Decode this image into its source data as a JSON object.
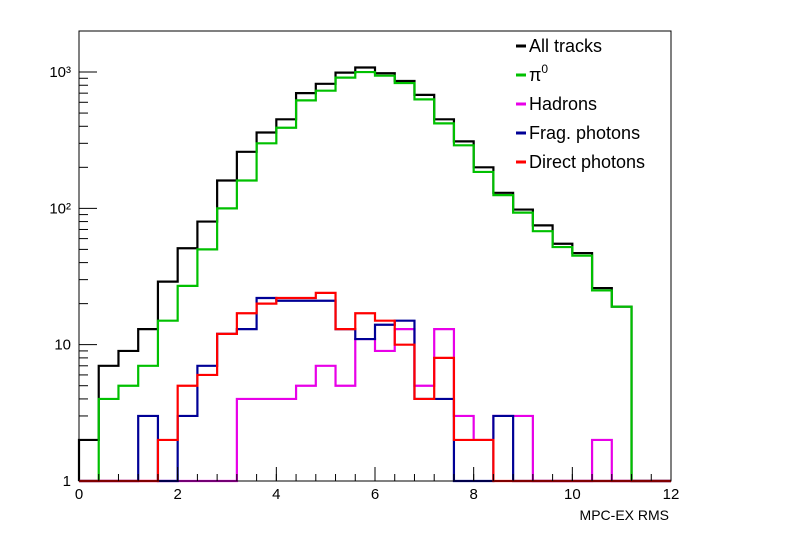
{
  "chart_data": {
    "type": "histogram",
    "xlabel": "MPC-EX RMS",
    "ylabel": "",
    "xlim": [
      0,
      12
    ],
    "ylim": [
      1,
      2000
    ],
    "y_scale": "log",
    "grid": false,
    "legend_position": "top-right",
    "bin_edges": [
      0,
      0.4,
      0.8,
      1.2,
      1.6,
      2.0,
      2.4,
      2.8,
      3.2,
      3.6,
      4.0,
      4.4,
      4.8,
      5.2,
      5.6,
      6.0,
      6.4,
      6.8,
      7.2,
      7.6,
      8.0,
      8.4,
      8.8,
      9.2,
      9.6,
      10.0,
      10.4,
      10.8,
      11.2,
      11.6,
      12.0
    ],
    "x_ticks": [
      "0",
      "2",
      "4",
      "6",
      "8",
      "10",
      "12"
    ],
    "x_tick_values": [
      0,
      2,
      4,
      6,
      8,
      10,
      12
    ],
    "y_ticks": [
      "1",
      "10",
      "10²",
      "10³"
    ],
    "y_tick_values": [
      1,
      10,
      100,
      1000
    ],
    "series": [
      {
        "name": "All tracks",
        "color": "#000000",
        "values": [
          2,
          7,
          9,
          13,
          29,
          51,
          80,
          160,
          260,
          360,
          450,
          700,
          820,
          990,
          1080,
          980,
          860,
          680,
          450,
          310,
          200,
          130,
          98,
          75,
          55,
          47,
          26,
          19,
          1,
          1
        ]
      },
      {
        "name": "π⁰",
        "color": "#00c000",
        "values": [
          1,
          4,
          5,
          7,
          15,
          27,
          50,
          100,
          160,
          300,
          390,
          620,
          730,
          910,
          1000,
          940,
          830,
          630,
          420,
          290,
          185,
          125,
          93,
          68,
          52,
          45,
          25,
          19,
          1,
          1
        ]
      },
      {
        "name": "Hadrons",
        "color": "#e800e8",
        "values": [
          1,
          1,
          1,
          1,
          1,
          1,
          1,
          1,
          4,
          4,
          4,
          5,
          7,
          5,
          11,
          9,
          13,
          5,
          13,
          3,
          2,
          3,
          3,
          1,
          1,
          1,
          2,
          1,
          1,
          1
        ]
      },
      {
        "name": "Frag. photons",
        "color": "#000096",
        "values": [
          1,
          1,
          1,
          3,
          1,
          3,
          7,
          12,
          13,
          22,
          21,
          21,
          21,
          13,
          11,
          14,
          15,
          4,
          4,
          1,
          1,
          3,
          1,
          1,
          1,
          1,
          1,
          1,
          1,
          1
        ]
      },
      {
        "name": "Direct photons",
        "color": "#ff0000",
        "values": [
          1,
          1,
          1,
          1,
          2,
          5,
          6,
          12,
          17,
          20,
          22,
          22,
          24,
          13,
          17,
          15,
          10,
          4,
          8,
          2,
          2,
          1,
          1,
          1,
          1,
          1,
          1,
          1,
          1,
          1
        ]
      }
    ]
  },
  "legend": {
    "items": [
      {
        "label": "All tracks",
        "color": "#000000"
      },
      {
        "label": "π",
        "sup": "0",
        "color": "#00c000"
      },
      {
        "label": "Hadrons",
        "color": "#e800e8"
      },
      {
        "label": "Frag. photons",
        "color": "#000096"
      },
      {
        "label": "Direct photons",
        "color": "#ff0000"
      }
    ]
  }
}
